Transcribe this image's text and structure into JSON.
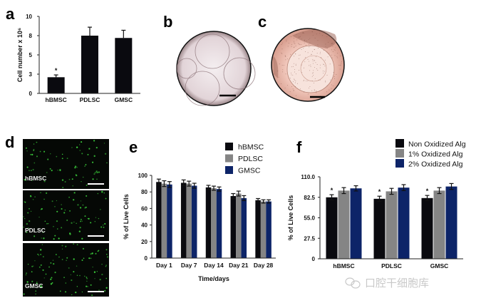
{
  "panels": {
    "a": "a",
    "b": "b",
    "c": "c",
    "d": "d",
    "e": "e",
    "f": "f"
  },
  "micrographs": {
    "d_labels": [
      "hBMSC",
      "PDLSC",
      "GMSC"
    ]
  },
  "watermark": "口腔干细胞库",
  "colors": {
    "black": "#0a0a0f",
    "gray": "#858585",
    "navy": "#0d2468",
    "fluorescence": "#3cd23c"
  },
  "chart_data": [
    {
      "panel": "a",
      "type": "bar",
      "categories": [
        "hBMSC",
        "PDLSC",
        "GMSC"
      ],
      "values": [
        2.1,
        7.5,
        7.2
      ],
      "errors": [
        0.3,
        1.1,
        1.0
      ],
      "annotations": [
        "*",
        "",
        ""
      ],
      "ylabel": "Cell number x 10⁶",
      "xlabel": "",
      "ylim": [
        0,
        10
      ],
      "yticks": [
        {
          "value": 0,
          "label": "0"
        },
        {
          "value": 2.5,
          "label": "3"
        },
        {
          "value": 5,
          "label": "5"
        },
        {
          "value": 7.5,
          "label": "8"
        },
        {
          "value": 10,
          "label": "10"
        }
      ],
      "grid": false,
      "series_colors": [
        "#0a0a0f"
      ]
    },
    {
      "panel": "e",
      "type": "bar",
      "categories": [
        "Day 1",
        "Day 7",
        "Day 14",
        "Day 21",
        "Day 28"
      ],
      "series": [
        {
          "name": "hBMSC",
          "color": "#0a0a0f",
          "values": [
            92,
            91,
            85.5,
            75,
            70
          ],
          "errors": [
            3.5,
            3.5,
            2.5,
            3,
            2
          ]
        },
        {
          "name": "PDLSC",
          "color": "#858585",
          "values": [
            90,
            90,
            84.5,
            78,
            68.5
          ],
          "errors": [
            3.5,
            3,
            2.5,
            3,
            2
          ]
        },
        {
          "name": "GMSC",
          "color": "#0d2468",
          "values": [
            89,
            87.5,
            83.5,
            72.5,
            68.5
          ],
          "errors": [
            3.5,
            3,
            2.5,
            3,
            2
          ]
        }
      ],
      "ylabel": "% of Live Cells",
      "xlabel": "Time/days",
      "ylim": [
        0,
        100
      ],
      "yticks": [
        {
          "value": 0,
          "label": "0"
        },
        {
          "value": 20,
          "label": "20"
        },
        {
          "value": 40,
          "label": "40"
        },
        {
          "value": 60,
          "label": "60"
        },
        {
          "value": 80,
          "label": "80"
        },
        {
          "value": 100,
          "label": "100"
        }
      ],
      "legend": "top-right",
      "grid": false
    },
    {
      "panel": "f",
      "type": "bar",
      "categories": [
        "hBMSC",
        "PDLSC",
        "GMSC"
      ],
      "series": [
        {
          "name": "Non Oxidized Alg",
          "color": "#0a0a0f",
          "values": [
            82.5,
            80.5,
            81.5
          ],
          "errors": [
            3.5,
            3.5,
            3.5
          ],
          "annotations": [
            "*",
            "*",
            "*"
          ]
        },
        {
          "name": "1% Oxidized Alg",
          "color": "#858585",
          "values": [
            91.5,
            90.5,
            91.5
          ],
          "errors": [
            4,
            4,
            4
          ]
        },
        {
          "name": "2% Oxidized Alg",
          "color": "#0d2468",
          "values": [
            94.5,
            95.5,
            97
          ],
          "errors": [
            3.5,
            4,
            4
          ]
        }
      ],
      "ylabel": "% of Live Cells",
      "xlabel": "",
      "ylim": [
        0,
        110
      ],
      "yticks": [
        {
          "value": 0,
          "label": "0"
        },
        {
          "value": 27.5,
          "label": "27.5"
        },
        {
          "value": 55,
          "label": "55.0"
        },
        {
          "value": 82.5,
          "label": "82.5"
        },
        {
          "value": 110,
          "label": "110.0"
        }
      ],
      "legend": "top-right",
      "grid": false
    }
  ]
}
